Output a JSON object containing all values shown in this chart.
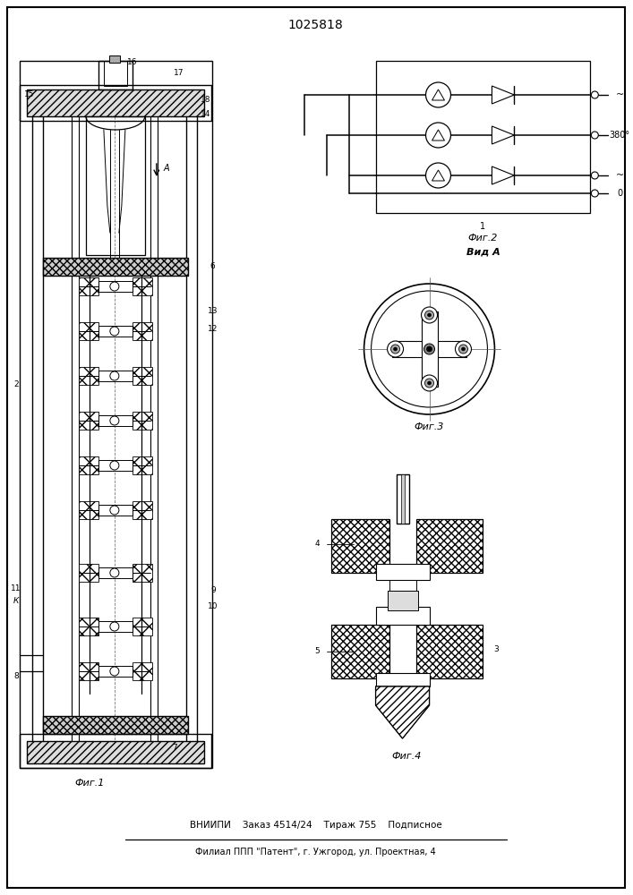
{
  "patent_number": "1025818",
  "footer_line1": "ВНИИПИ    Заказ 4514/24    Тираж 755    Подписное",
  "footer_line2": "Филиал ППП \"Патент\", г. Ужгород, ул. Проектная, 4",
  "fig1_label": "Фиг.1",
  "fig2_label": "Фиг.2",
  "fig3_label": "Фиг.3",
  "fig4_label": "Фиг.4",
  "vid_a_label": "Вид А",
  "voltage_label": "380°",
  "zero_label": "0",
  "bg_color": "#ffffff",
  "line_color": "#000000"
}
